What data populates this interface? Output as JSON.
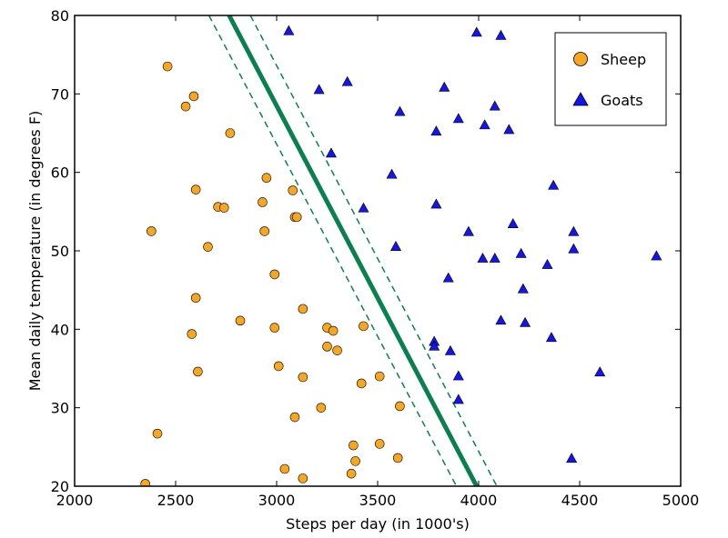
{
  "chart_data": {
    "type": "scatter",
    "title": "",
    "xlabel": "Steps per day (in 1000's)",
    "ylabel": "Mean daily temperature (in degrees F)",
    "xlim": [
      2000,
      5000
    ],
    "ylim": [
      20,
      80
    ],
    "xticks": [
      2000,
      2500,
      3000,
      3500,
      4000,
      4500,
      5000
    ],
    "yticks": [
      20,
      30,
      40,
      50,
      60,
      70,
      80
    ],
    "grid": false,
    "legend": {
      "position": "top-right"
    },
    "series": [
      {
        "name": "Sheep",
        "marker": "circle",
        "color": "#f5a623",
        "points": [
          [
            2460,
            73.5
          ],
          [
            2590,
            69.7
          ],
          [
            2550,
            68.4
          ],
          [
            2770,
            65.0
          ],
          [
            2950,
            59.3
          ],
          [
            2600,
            57.8
          ],
          [
            3080,
            57.7
          ],
          [
            2930,
            56.2
          ],
          [
            2710,
            55.6
          ],
          [
            2740,
            55.5
          ],
          [
            3090,
            54.3
          ],
          [
            3100,
            54.3
          ],
          [
            2380,
            52.5
          ],
          [
            2940,
            52.5
          ],
          [
            2660,
            50.5
          ],
          [
            2990,
            47.0
          ],
          [
            2600,
            44.0
          ],
          [
            3130,
            42.6
          ],
          [
            2820,
            41.1
          ],
          [
            2990,
            40.2
          ],
          [
            3250,
            40.2
          ],
          [
            3430,
            40.4
          ],
          [
            3280,
            39.8
          ],
          [
            2580,
            39.4
          ],
          [
            3250,
            37.8
          ],
          [
            3300,
            37.3
          ],
          [
            3010,
            35.3
          ],
          [
            2610,
            34.6
          ],
          [
            3130,
            33.9
          ],
          [
            3510,
            34.0
          ],
          [
            3420,
            33.1
          ],
          [
            3610,
            30.2
          ],
          [
            3220,
            30.0
          ],
          [
            3090,
            28.8
          ],
          [
            2410,
            26.7
          ],
          [
            3380,
            25.2
          ],
          [
            3510,
            25.4
          ],
          [
            3390,
            23.2
          ],
          [
            3600,
            23.6
          ],
          [
            3040,
            22.2
          ],
          [
            3370,
            21.6
          ],
          [
            3130,
            21.0
          ],
          [
            2350,
            20.3
          ]
        ]
      },
      {
        "name": "Goats",
        "marker": "triangle",
        "color": "#1515e6",
        "points": [
          [
            3060,
            78.0
          ],
          [
            3990,
            77.8
          ],
          [
            4110,
            77.4
          ],
          [
            3350,
            71.5
          ],
          [
            3210,
            70.5
          ],
          [
            3830,
            70.8
          ],
          [
            4080,
            68.4
          ],
          [
            3610,
            67.7
          ],
          [
            3900,
            66.8
          ],
          [
            4030,
            66.0
          ],
          [
            3790,
            65.2
          ],
          [
            4150,
            65.4
          ],
          [
            3270,
            62.4
          ],
          [
            3570,
            59.7
          ],
          [
            4370,
            58.3
          ],
          [
            3430,
            55.4
          ],
          [
            3790,
            55.9
          ],
          [
            4170,
            53.4
          ],
          [
            3950,
            52.4
          ],
          [
            4470,
            52.4
          ],
          [
            3590,
            50.5
          ],
          [
            4470,
            50.2
          ],
          [
            4020,
            49.0
          ],
          [
            4080,
            49.0
          ],
          [
            4210,
            49.6
          ],
          [
            4880,
            49.3
          ],
          [
            4340,
            48.2
          ],
          [
            3850,
            46.5
          ],
          [
            4220,
            45.1
          ],
          [
            4110,
            41.1
          ],
          [
            4230,
            40.8
          ],
          [
            4360,
            38.9
          ],
          [
            3780,
            38.4
          ],
          [
            3780,
            37.8
          ],
          [
            3860,
            37.2
          ],
          [
            4600,
            34.5
          ],
          [
            3900,
            34.0
          ],
          [
            3900,
            31.0
          ],
          [
            4460,
            23.5
          ]
        ]
      }
    ],
    "lines": [
      {
        "role": "decision-boundary",
        "style": "solid",
        "color": "#0a8050",
        "points": [
          [
            2765,
            80
          ],
          [
            3990,
            20
          ]
        ]
      },
      {
        "role": "margin",
        "style": "dashed",
        "color": "#0a8050",
        "points": [
          [
            2665,
            80
          ],
          [
            3890,
            20
          ]
        ]
      },
      {
        "role": "margin",
        "style": "dashed",
        "color": "#0a8050",
        "points": [
          [
            2870,
            80
          ],
          [
            4090,
            20
          ]
        ]
      }
    ]
  }
}
